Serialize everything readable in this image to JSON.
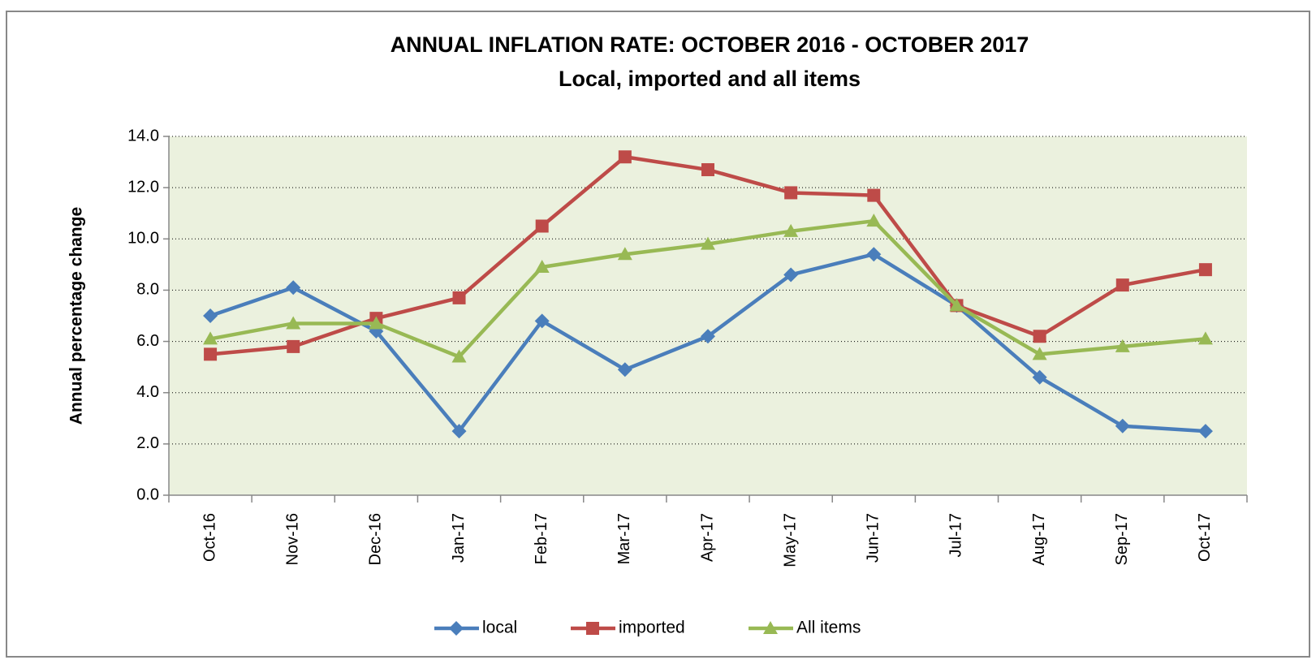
{
  "chart_data": {
    "type": "line",
    "title": "ANNUAL INFLATION RATE: OCTOBER 2016 - OCTOBER 2017",
    "subtitle": "Local, imported and all items",
    "y_label": "Annual percentage change",
    "categories": [
      "Oct-16",
      "Nov-16",
      "Dec-16",
      "Jan-17",
      "Feb-17",
      "Mar-17",
      "Apr-17",
      "May-17",
      "Jun-17",
      "Jul-17",
      "Aug-17",
      "Sep-17",
      "Oct-17"
    ],
    "series": [
      {
        "name": "local",
        "color": "#4a7ebb",
        "marker": "diamond",
        "values": [
          7.0,
          8.1,
          6.4,
          2.5,
          6.8,
          4.9,
          6.2,
          8.6,
          9.4,
          7.4,
          4.6,
          2.7,
          2.5
        ]
      },
      {
        "name": "imported",
        "color": "#be4b48",
        "marker": "square",
        "values": [
          5.5,
          5.8,
          6.9,
          7.7,
          10.5,
          13.2,
          12.7,
          11.8,
          11.7,
          7.4,
          6.2,
          8.2,
          8.8
        ]
      },
      {
        "name": "All items",
        "color": "#98b954",
        "marker": "triangle",
        "values": [
          6.1,
          6.7,
          6.7,
          5.4,
          8.9,
          9.4,
          9.8,
          10.3,
          10.7,
          7.4,
          5.5,
          5.8,
          6.1
        ]
      }
    ],
    "ylim": [
      0,
      14
    ],
    "yticks": [
      {
        "value": 0,
        "label": "0.0"
      },
      {
        "value": 2,
        "label": "2.0"
      },
      {
        "value": 4,
        "label": "4.0"
      },
      {
        "value": 6,
        "label": "6.0"
      },
      {
        "value": 8,
        "label": "8.0"
      },
      {
        "value": 10,
        "label": "10.0"
      },
      {
        "value": 12,
        "label": "12.0"
      },
      {
        "value": 14,
        "label": "14.0"
      }
    ],
    "grid": true,
    "legend": "bottom",
    "plot_background": "#ebf1de"
  }
}
